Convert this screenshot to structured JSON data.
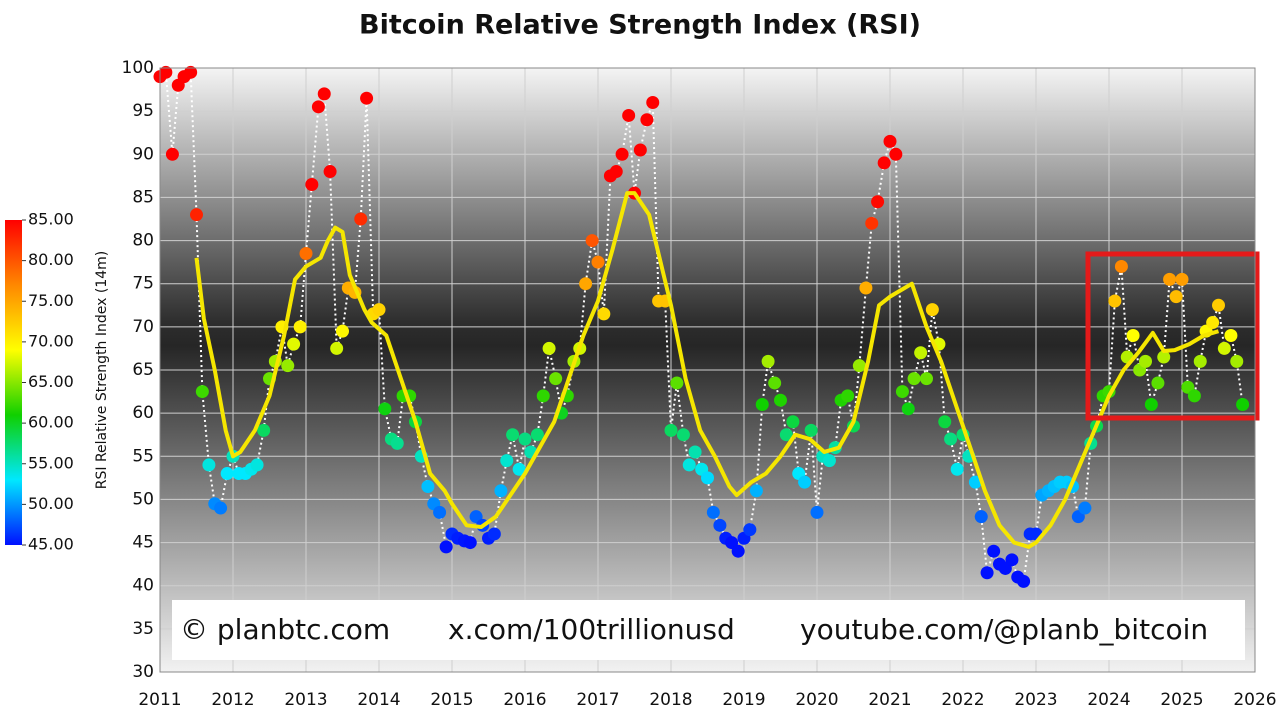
{
  "chart_data": {
    "type": "scatter",
    "title": "Bitcoin Relative Strength Index (RSI)",
    "y_label": "RSI Relative Strength Index (14m)",
    "xlim": [
      2011,
      2026
    ],
    "xticks": [
      2011,
      2012,
      2013,
      2014,
      2015,
      2016,
      2017,
      2018,
      2019,
      2020,
      2021,
      2022,
      2023,
      2024,
      2025,
      2026
    ],
    "ylim": [
      30,
      100
    ],
    "yticks": [
      30,
      35,
      40,
      45,
      50,
      55,
      60,
      65,
      70,
      75,
      80,
      85,
      90,
      95,
      100
    ],
    "grid": true,
    "colorscale": [
      "#0010ff",
      "#00e8ff",
      "#10d000",
      "#ffff00",
      "#ff8800",
      "#ff0000"
    ],
    "colorbar": {
      "range": [
        45,
        85
      ],
      "ticks": [
        {
          "value": 85,
          "label": "85.00"
        },
        {
          "value": 80,
          "label": "80.00"
        },
        {
          "value": 75,
          "label": "75.00"
        },
        {
          "value": 70,
          "label": "70.00"
        },
        {
          "value": 65,
          "label": "65.00"
        },
        {
          "value": 60,
          "label": "60.00"
        },
        {
          "value": 55,
          "label": "55.00"
        },
        {
          "value": 50,
          "label": "50.00"
        },
        {
          "value": 45,
          "label": "45.00"
        }
      ]
    },
    "annotations": [
      "© planbtc.com",
      "x.com/100trillionusd",
      "youtube.com/@planb_bitcoin"
    ],
    "series": [
      {
        "mode": "points",
        "color": "colorscale",
        "connector_color": "#ffffff",
        "x": [
          2011.0,
          2011.08,
          2011.17,
          2011.25,
          2011.33,
          2011.42,
          2011.5,
          2011.58,
          2011.67,
          2011.75,
          2011.83,
          2011.92,
          2012.0,
          2012.08,
          2012.17,
          2012.25,
          2012.33,
          2012.42,
          2012.5,
          2012.58,
          2012.67,
          2012.75,
          2012.83,
          2012.92,
          2013.0,
          2013.08,
          2013.17,
          2013.25,
          2013.33,
          2013.42,
          2013.5,
          2013.58,
          2013.67,
          2013.75,
          2013.83,
          2013.92,
          2014.0,
          2014.08,
          2014.17,
          2014.25,
          2014.33,
          2014.42,
          2014.5,
          2014.58,
          2014.67,
          2014.75,
          2014.83,
          2014.92,
          2015.0,
          2015.08,
          2015.17,
          2015.25,
          2015.33,
          2015.42,
          2015.5,
          2015.58,
          2015.67,
          2015.75,
          2015.83,
          2015.92,
          2016.0,
          2016.08,
          2016.17,
          2016.25,
          2016.33,
          2016.42,
          2016.5,
          2016.58,
          2016.67,
          2016.75,
          2016.83,
          2016.92,
          2017.0,
          2017.08,
          2017.17,
          2017.25,
          2017.33,
          2017.42,
          2017.5,
          2017.58,
          2017.67,
          2017.75,
          2017.83,
          2017.92,
          2018.0,
          2018.08,
          2018.17,
          2018.25,
          2018.33,
          2018.42,
          2018.5,
          2018.58,
          2018.67,
          2018.75,
          2018.83,
          2018.92,
          2019.0,
          2019.08,
          2019.17,
          2019.25,
          2019.33,
          2019.42,
          2019.5,
          2019.58,
          2019.67,
          2019.75,
          2019.83,
          2019.92,
          2020.0,
          2020.08,
          2020.17,
          2020.25,
          2020.33,
          2020.42,
          2020.5,
          2020.58,
          2020.67,
          2020.75,
          2020.83,
          2020.92,
          2021.0,
          2021.08,
          2021.17,
          2021.25,
          2021.33,
          2021.42,
          2021.5,
          2021.58,
          2021.67,
          2021.75,
          2021.83,
          2021.92,
          2022.0,
          2022.08,
          2022.17,
          2022.25,
          2022.33,
          2022.42,
          2022.5,
          2022.58,
          2022.67,
          2022.75,
          2022.83,
          2022.92,
          2023.0,
          2023.08,
          2023.17,
          2023.25,
          2023.33,
          2023.42,
          2023.5,
          2023.58,
          2023.67,
          2023.75,
          2023.83,
          2023.92,
          2024.0,
          2024.08,
          2024.17,
          2024.25,
          2024.33,
          2024.42,
          2024.5,
          2024.58,
          2024.67,
          2024.75,
          2024.83,
          2024.92,
          2025.0,
          2025.08,
          2025.17,
          2025.25,
          2025.33,
          2025.42,
          2025.5,
          2025.58,
          2025.67,
          2025.75,
          2025.83
        ],
        "values": [
          99,
          99.5,
          90,
          98,
          99,
          99.5,
          83,
          62.5,
          54,
          49.5,
          49,
          53,
          55,
          53,
          53,
          53.5,
          54,
          58,
          64,
          66,
          70,
          65.5,
          68,
          70,
          78.5,
          86.5,
          95.5,
          97,
          88,
          67.5,
          69.5,
          74.5,
          74,
          82.5,
          96.5,
          71.5,
          72,
          60.5,
          57,
          56.5,
          62,
          62,
          59,
          55,
          51.5,
          49.5,
          48.5,
          44.5,
          46,
          45.5,
          45.2,
          45,
          48,
          47,
          45.5,
          46,
          51,
          54.5,
          57.5,
          53.5,
          57,
          55.5,
          57.5,
          62,
          67.5,
          64,
          60,
          62,
          66,
          67.5,
          75,
          80,
          77.5,
          71.5,
          87.5,
          88,
          90,
          94.5,
          85.5,
          90.5,
          94,
          96,
          73,
          73,
          58,
          63.5,
          57.5,
          54,
          55.5,
          53.5,
          52.5,
          48.5,
          47,
          45.5,
          45,
          44,
          45.5,
          46.5,
          51,
          61,
          66,
          63.5,
          61.5,
          57.5,
          59,
          53,
          52,
          58,
          48.5,
          55,
          54.5,
          56,
          61.5,
          62,
          58.5,
          65.5,
          74.5,
          82,
          84.5,
          89,
          91.5,
          90,
          62.5,
          60.5,
          64,
          67,
          64,
          72,
          68,
          59,
          57,
          53.5,
          57.5,
          55,
          52,
          48,
          41.5,
          44,
          42.5,
          42,
          43,
          41,
          40.5,
          46,
          46,
          50.5,
          51,
          51.5,
          52,
          52,
          51.5,
          48,
          49,
          56.5,
          58.5,
          62,
          62.5,
          73,
          77,
          66.5,
          69,
          65,
          66,
          61,
          63.5,
          66.5,
          75.5,
          73.5,
          75.5,
          63,
          62,
          66,
          69.5,
          70.5,
          72.5,
          67.5,
          69,
          66,
          61
        ]
      },
      {
        "mode": "line",
        "color": "#f5e600",
        "x": [
          2011.5,
          2011.6,
          2011.75,
          2011.9,
          2012.0,
          2012.1,
          2012.3,
          2012.5,
          2012.7,
          2012.85,
          2013.0,
          2013.2,
          2013.3,
          2013.4,
          2013.5,
          2013.6,
          2013.8,
          2013.9,
          2014.1,
          2014.3,
          2014.5,
          2014.7,
          2014.9,
          2015.0,
          2015.2,
          2015.4,
          2015.6,
          2015.8,
          2016.0,
          2016.2,
          2016.4,
          2016.6,
          2016.8,
          2017.0,
          2017.2,
          2017.4,
          2017.5,
          2017.7,
          2017.9,
          2018.0,
          2018.2,
          2018.4,
          2018.6,
          2018.8,
          2018.9,
          2019.1,
          2019.3,
          2019.5,
          2019.7,
          2019.9,
          2020.1,
          2020.3,
          2020.5,
          2020.7,
          2020.85,
          2021.0,
          2021.2,
          2021.3,
          2021.5,
          2021.7,
          2021.9,
          2022.1,
          2022.3,
          2022.5,
          2022.7,
          2022.9,
          2023.0,
          2023.2,
          2023.4,
          2023.6,
          2023.8,
          2024.0,
          2024.2,
          2024.4,
          2024.6,
          2024.75,
          2024.9,
          2025.1,
          2025.3,
          2025.5
        ],
        "values": [
          78,
          71,
          65,
          58,
          55,
          55.5,
          58,
          62,
          69,
          75.5,
          77,
          78,
          80,
          81.5,
          81,
          76,
          72,
          70.5,
          69,
          64,
          59,
          53,
          51,
          49.5,
          47,
          46.8,
          48,
          50.5,
          53,
          56,
          59,
          64,
          69,
          73,
          79,
          85.5,
          85.5,
          83,
          76,
          72.5,
          64,
          58,
          55,
          51.5,
          50.5,
          52,
          53,
          55,
          57.5,
          57,
          55.5,
          56,
          59,
          66,
          72.5,
          73.5,
          74.5,
          75,
          70,
          66,
          61,
          56,
          51,
          47,
          45,
          44.5,
          45,
          47,
          50,
          54,
          58,
          62,
          65,
          67,
          69.3,
          67.2,
          67.3,
          68,
          69,
          69.5
        ]
      }
    ]
  }
}
